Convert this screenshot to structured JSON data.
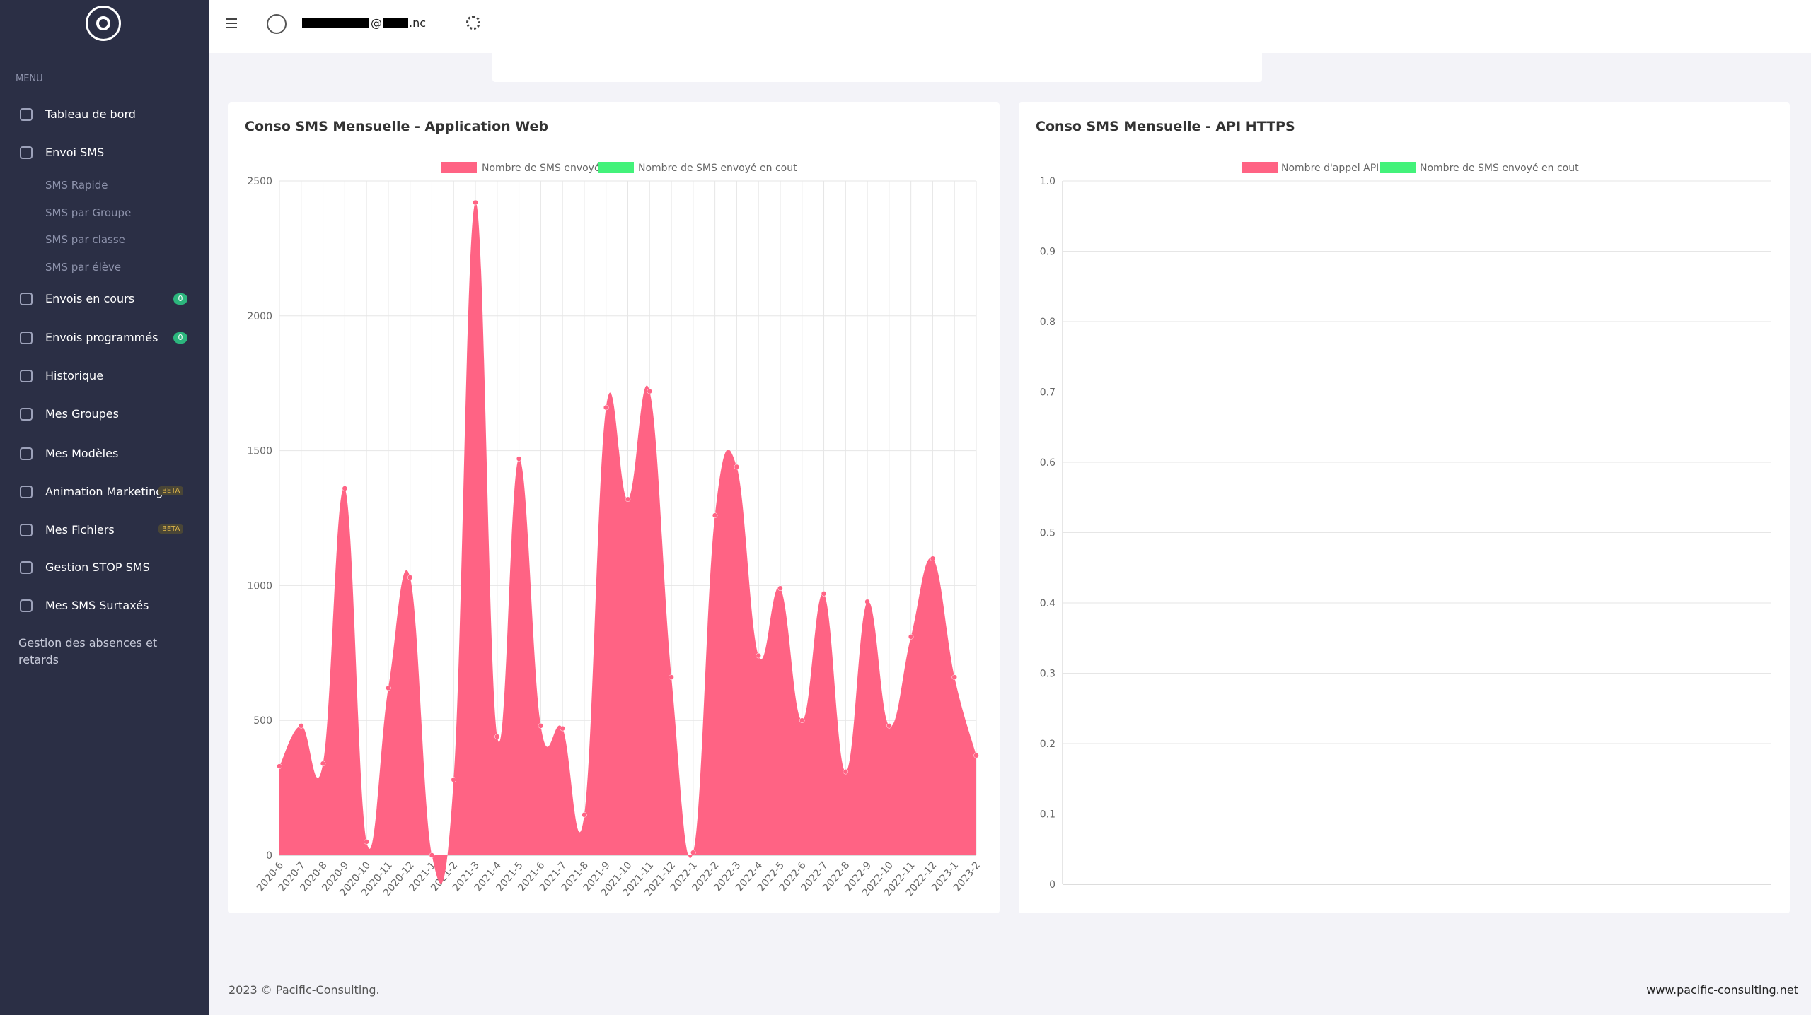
{
  "sidebar": {
    "menu_label": "MENU",
    "items": [
      {
        "label": "Tableau de bord"
      },
      {
        "label": "Envoi SMS"
      },
      {
        "label": "SMS Rapide",
        "sub": true
      },
      {
        "label": "SMS par Groupe",
        "sub": true
      },
      {
        "label": "SMS par classe",
        "sub": true
      },
      {
        "label": "SMS par élève",
        "sub": true
      },
      {
        "label": "Envois en cours",
        "badge": 0
      },
      {
        "label": "Envois programmés",
        "badge": 0
      },
      {
        "label": "Historique"
      },
      {
        "label": "Mes Groupes"
      },
      {
        "label": "Mes Modèles"
      },
      {
        "label": "Animation Marketing",
        "tag": "BETA"
      },
      {
        "label": "Mes Fichiers",
        "tag": "BETA"
      },
      {
        "label": "Gestion STOP SMS"
      },
      {
        "label": "Mes SMS Surtaxés"
      }
    ],
    "bottom_link": "Gestion des absences et retards"
  },
  "header": {
    "email_at": "@",
    "email_suffix": ".nc"
  },
  "chart_data": [
    {
      "type": "area",
      "title": "Conso SMS Mensuelle - Application Web",
      "categories": [
        "2020-6",
        "2020-7",
        "2020-8",
        "2020-9",
        "2020-10",
        "2020-11",
        "2020-12",
        "2021-1",
        "2021-2",
        "2021-3",
        "2021-4",
        "2021-5",
        "2021-6",
        "2021-7",
        "2021-8",
        "2021-9",
        "2021-10",
        "2021-11",
        "2021-12",
        "2022-1",
        "2022-2",
        "2022-3",
        "2022-4",
        "2022-5",
        "2022-6",
        "2022-7",
        "2022-8",
        "2022-9",
        "2022-10",
        "2022-11",
        "2022-12",
        "2023-1",
        "2023-2"
      ],
      "series": [
        {
          "name": "Nombre de SMS envoyé",
          "color": "#ff6384",
          "values": [
            330,
            480,
            340,
            1360,
            50,
            620,
            1030,
            0,
            280,
            2420,
            440,
            1470,
            480,
            470,
            150,
            1660,
            1320,
            1720,
            660,
            10,
            1260,
            1440,
            740,
            990,
            500,
            970,
            310,
            940,
            480,
            810,
            1100,
            660,
            370
          ]
        },
        {
          "name": "Nombre de SMS envoyé en cout",
          "color": "#43f27a"
        }
      ],
      "ylim": [
        0,
        2500
      ],
      "yticks": [
        0,
        500,
        1000,
        1500,
        2000,
        2500
      ],
      "grid": true
    },
    {
      "type": "area",
      "title": "Conso SMS Mensuelle - API HTTPS",
      "series": [
        {
          "name": "Nombre d'appel API",
          "color": "#ff6384"
        },
        {
          "name": "Nombre de SMS envoyé en cout",
          "color": "#43f27a"
        }
      ],
      "ylim": [
        0,
        1
      ],
      "yticks": [
        0,
        0.1,
        0.2,
        0.3,
        0.4,
        0.5,
        0.6,
        0.7,
        0.8,
        0.9,
        {
          "value": 1,
          "label": "1.0"
        }
      ],
      "grid": true
    }
  ],
  "footer": {
    "copyright": "2023 © Pacific-Consulting.",
    "website": "www.pacific-consulting.net"
  }
}
